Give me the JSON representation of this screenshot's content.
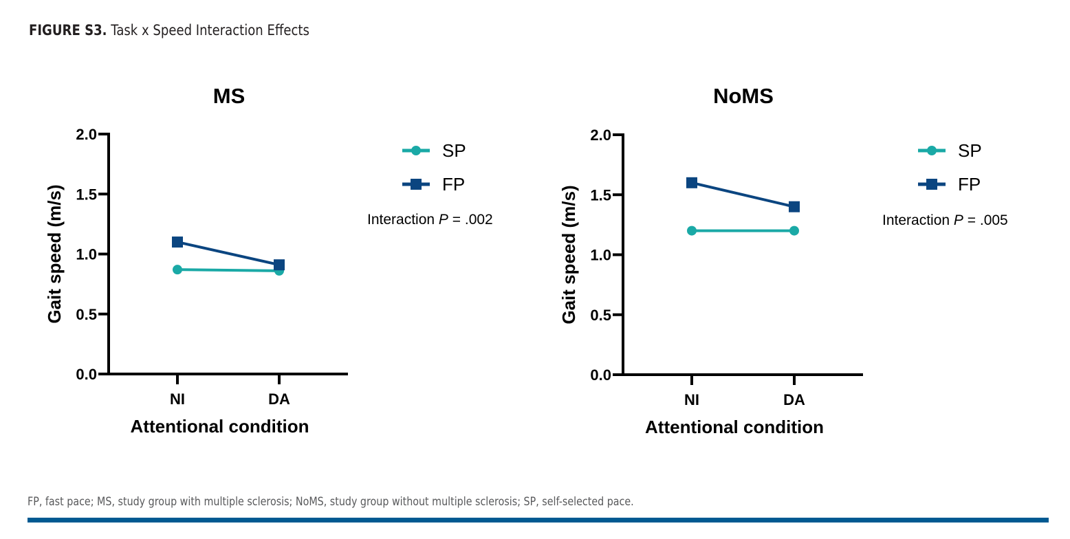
{
  "figure": {
    "label": "FIGURE S3.",
    "title": "Task x Speed Interaction Effects",
    "footnote": "FP, fast pace; MS, study group with multiple sclerosis; NoMS, study group without multiple sclerosis; SP, self-selected pace.",
    "rule_color": "#005a92"
  },
  "colors": {
    "SP": "#1aa9a6",
    "FP": "#0b4580"
  },
  "chart_data": [
    {
      "type": "line",
      "title": "MS",
      "xlabel": "Attentional condition",
      "ylabel": "Gait speed (m/s)",
      "categories": [
        "NI",
        "DA"
      ],
      "ylim": [
        0,
        2.0
      ],
      "yticks": [
        "0.0",
        "0.5",
        "1.0",
        "1.5",
        "2.0"
      ],
      "grid": false,
      "legend": "right",
      "series": [
        {
          "name": "SP",
          "marker": "circle",
          "values": [
            0.87,
            0.86
          ]
        },
        {
          "name": "FP",
          "marker": "square",
          "values": [
            1.1,
            0.91
          ]
        }
      ],
      "annotation": {
        "prefix": "Interaction ",
        "italic": "P",
        "suffix": " = .002"
      }
    },
    {
      "type": "line",
      "title": "NoMS",
      "xlabel": "Attentional condition",
      "ylabel": "Gait speed (m/s)",
      "categories": [
        "NI",
        "DA"
      ],
      "ylim": [
        0,
        2.0
      ],
      "yticks": [
        "0.0",
        "0.5",
        "1.0",
        "1.5",
        "2.0"
      ],
      "grid": false,
      "legend": "right",
      "series": [
        {
          "name": "SP",
          "marker": "circle",
          "values": [
            1.2,
            1.2
          ]
        },
        {
          "name": "FP",
          "marker": "square",
          "values": [
            1.6,
            1.4
          ]
        }
      ],
      "annotation": {
        "prefix": "Interaction ",
        "italic": "P",
        "suffix": " = .005"
      }
    }
  ]
}
